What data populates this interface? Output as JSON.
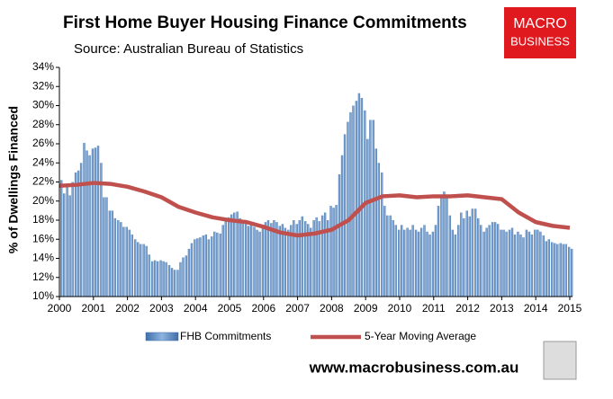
{
  "chart_data": {
    "type": "bar-line",
    "title": "First Home Buyer Housing Finance Commitments",
    "subtitle": "Source: Australian Bureau of Statistics",
    "logo": [
      "MACRO",
      "BUSINESS"
    ],
    "footer": "www.macrobusiness.com.au",
    "y_label": "% of Dwellings Financed",
    "xlim": [
      2000,
      2015.08
    ],
    "xticks": [
      2000,
      2001,
      2002,
      2003,
      2004,
      2005,
      2006,
      2007,
      2008,
      2009,
      2010,
      2011,
      2012,
      2013,
      2014,
      2015
    ],
    "ylim": [
      10,
      34
    ],
    "yticks": [
      {
        "value": 10,
        "label": "10%"
      },
      {
        "value": 12,
        "label": "12%"
      },
      {
        "value": 14,
        "label": "14%"
      },
      {
        "value": 16,
        "label": "16%"
      },
      {
        "value": 18,
        "label": "18%"
      },
      {
        "value": 20,
        "label": "20%"
      },
      {
        "value": 22,
        "label": "22%"
      },
      {
        "value": 24,
        "label": "24%"
      },
      {
        "value": 26,
        "label": "26%"
      },
      {
        "value": 28,
        "label": "28%"
      },
      {
        "value": 30,
        "label": "30%"
      },
      {
        "value": 32,
        "label": "32%"
      },
      {
        "value": 34,
        "label": "34%"
      }
    ],
    "grid": false,
    "series": [
      {
        "name": "FHB Commitments",
        "type": "bar",
        "color": "#5b8fc9",
        "x": [
          2000.0,
          2000.08,
          2000.17,
          2000.25,
          2000.33,
          2000.42,
          2000.5,
          2000.58,
          2000.67,
          2000.75,
          2000.83,
          2000.92,
          2001.0,
          2001.08,
          2001.17,
          2001.25,
          2001.33,
          2001.42,
          2001.5,
          2001.58,
          2001.67,
          2001.75,
          2001.83,
          2001.92,
          2002.0,
          2002.08,
          2002.17,
          2002.25,
          2002.33,
          2002.42,
          2002.5,
          2002.58,
          2002.67,
          2002.75,
          2002.83,
          2002.92,
          2003.0,
          2003.08,
          2003.17,
          2003.25,
          2003.33,
          2003.42,
          2003.5,
          2003.58,
          2003.67,
          2003.75,
          2003.83,
          2003.92,
          2004.0,
          2004.08,
          2004.17,
          2004.25,
          2004.33,
          2004.42,
          2004.5,
          2004.58,
          2004.67,
          2004.75,
          2004.83,
          2004.92,
          2005.0,
          2005.08,
          2005.17,
          2005.25,
          2005.33,
          2005.42,
          2005.5,
          2005.58,
          2005.67,
          2005.75,
          2005.83,
          2005.92,
          2006.0,
          2006.08,
          2006.17,
          2006.25,
          2006.33,
          2006.42,
          2006.5,
          2006.58,
          2006.67,
          2006.75,
          2006.83,
          2006.92,
          2007.0,
          2007.08,
          2007.17,
          2007.25,
          2007.33,
          2007.42,
          2007.5,
          2007.58,
          2007.67,
          2007.75,
          2007.83,
          2007.92,
          2008.0,
          2008.08,
          2008.17,
          2008.25,
          2008.33,
          2008.42,
          2008.5,
          2008.58,
          2008.67,
          2008.75,
          2008.83,
          2008.92,
          2009.0,
          2009.08,
          2009.17,
          2009.25,
          2009.33,
          2009.42,
          2009.5,
          2009.58,
          2009.67,
          2009.75,
          2009.83,
          2009.92,
          2010.0,
          2010.08,
          2010.17,
          2010.25,
          2010.33,
          2010.42,
          2010.5,
          2010.58,
          2010.67,
          2010.75,
          2010.83,
          2010.92,
          2011.0,
          2011.08,
          2011.17,
          2011.25,
          2011.33,
          2011.42,
          2011.5,
          2011.58,
          2011.67,
          2011.75,
          2011.83,
          2011.92,
          2012.0,
          2012.08,
          2012.17,
          2012.25,
          2012.33,
          2012.42,
          2012.5,
          2012.58,
          2012.67,
          2012.75,
          2012.83,
          2012.92,
          2013.0,
          2013.08,
          2013.17,
          2013.25,
          2013.33,
          2013.42,
          2013.5,
          2013.58,
          2013.67,
          2013.75,
          2013.83,
          2013.92,
          2014.0,
          2014.08,
          2014.17,
          2014.25,
          2014.33,
          2014.42,
          2014.5,
          2014.58,
          2014.67,
          2014.75,
          2014.83,
          2014.92,
          2015.0
        ],
        "values": [
          22.2,
          20.8,
          21.5,
          20.6,
          22.0,
          23.0,
          23.2,
          24.0,
          26.1,
          25.3,
          24.8,
          25.5,
          25.6,
          25.8,
          24.0,
          20.4,
          20.4,
          19.0,
          19.0,
          18.2,
          18.0,
          17.8,
          17.3,
          17.3,
          17.0,
          16.5,
          16.0,
          15.7,
          15.5,
          15.5,
          15.3,
          14.4,
          13.7,
          13.8,
          13.7,
          13.8,
          13.7,
          13.6,
          13.3,
          13.0,
          12.8,
          12.8,
          13.6,
          14.1,
          14.3,
          15.0,
          15.6,
          16.0,
          16.1,
          16.2,
          16.4,
          16.5,
          16.0,
          16.3,
          16.8,
          16.7,
          16.6,
          17.5,
          18.0,
          18.3,
          18.6,
          18.8,
          18.9,
          18.2,
          18.0,
          17.7,
          17.4,
          17.5,
          17.3,
          17.0,
          16.8,
          17.5,
          17.8,
          18.0,
          17.7,
          18.0,
          17.8,
          17.4,
          17.6,
          17.2,
          17.0,
          17.5,
          18.0,
          17.6,
          18.0,
          18.4,
          17.9,
          17.6,
          17.2,
          18.0,
          18.3,
          17.9,
          18.5,
          18.8,
          18.0,
          19.5,
          19.3,
          19.6,
          22.8,
          24.8,
          27.0,
          28.3,
          29.3,
          30.0,
          30.5,
          31.3,
          30.8,
          29.5,
          26.5,
          28.5,
          28.5,
          25.5,
          24.0,
          23.0,
          19.5,
          18.5,
          18.5,
          18.0,
          17.5,
          17.0,
          17.5,
          17.0,
          17.2,
          17.0,
          17.5,
          17.0,
          16.8,
          17.2,
          17.5,
          16.8,
          16.5,
          16.8,
          17.5,
          19.5,
          20.5,
          21.0,
          20.5,
          18.5,
          17.0,
          16.5,
          17.5,
          18.8,
          18.2,
          19.0,
          18.4,
          19.2,
          19.2,
          18.2,
          17.5,
          16.8,
          17.2,
          17.5,
          17.8,
          17.8,
          17.6,
          17.0,
          17.0,
          16.8,
          17.0,
          17.2,
          16.5,
          16.8,
          16.5,
          16.2,
          17.0,
          16.8,
          16.5,
          17.0,
          17.0,
          16.8,
          16.4,
          15.8,
          16.0,
          15.7,
          15.6,
          15.5,
          15.6,
          15.5,
          15.5,
          15.2,
          15.0
        ]
      },
      {
        "name": "5-Year Moving Average",
        "type": "line",
        "color": "#c0504d",
        "x": [
          2000,
          2000.5,
          2001,
          2001.5,
          2002,
          2002.5,
          2003,
          2003.5,
          2004,
          2004.5,
          2005,
          2005.5,
          2006,
          2006.5,
          2007,
          2007.5,
          2008,
          2008.5,
          2009,
          2009.5,
          2010,
          2010.5,
          2011,
          2011.5,
          2012,
          2012.5,
          2013,
          2013.5,
          2014,
          2014.5,
          2015
        ],
        "values": [
          21.6,
          21.7,
          21.9,
          21.8,
          21.5,
          21.0,
          20.4,
          19.4,
          18.8,
          18.3,
          18.0,
          17.8,
          17.3,
          16.7,
          16.4,
          16.6,
          17.0,
          18.0,
          19.8,
          20.5,
          20.6,
          20.4,
          20.5,
          20.5,
          20.6,
          20.4,
          20.2,
          18.8,
          17.8,
          17.4,
          17.2
        ]
      }
    ]
  }
}
